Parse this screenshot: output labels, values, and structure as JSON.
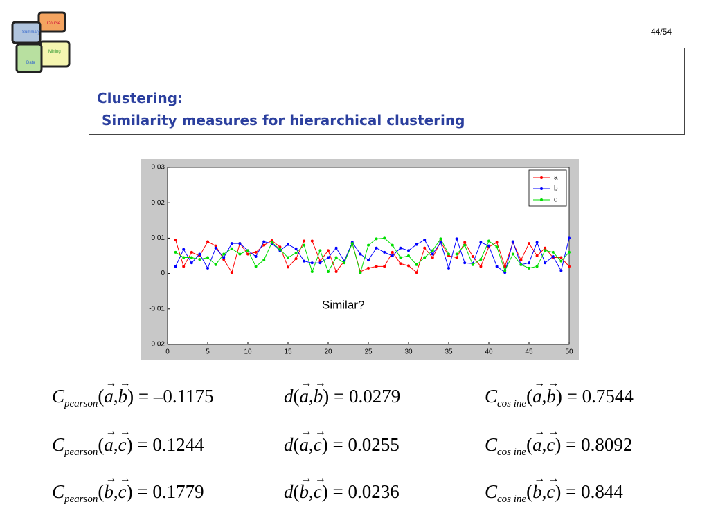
{
  "page_number": "44/54",
  "logo": {
    "pieces": [
      "Course",
      "Summary",
      "Mining",
      "Data"
    ]
  },
  "title": {
    "line1": "Clustering:",
    "line2": "Similarity measures for hierarchical clustering"
  },
  "chart_data": {
    "type": "line",
    "annotation": "Similar?",
    "x": [
      1,
      2,
      3,
      4,
      5,
      6,
      7,
      8,
      9,
      10,
      11,
      12,
      13,
      14,
      15,
      16,
      17,
      18,
      19,
      20,
      21,
      22,
      23,
      24,
      25,
      26,
      27,
      28,
      29,
      30,
      31,
      32,
      33,
      34,
      35,
      36,
      37,
      38,
      39,
      40,
      41,
      42,
      43,
      44,
      45,
      46,
      47,
      48,
      49,
      50
    ],
    "xlim": [
      0,
      50
    ],
    "xticks": [
      0,
      5,
      10,
      15,
      20,
      25,
      30,
      35,
      40,
      45,
      50
    ],
    "ylim": [
      -0.02,
      0.03
    ],
    "yticks": [
      -0.02,
      -0.01,
      0,
      0.01,
      0.02,
      0.03
    ],
    "legend": "upper right",
    "series": [
      {
        "name": "a",
        "color": "#ff0000",
        "values": [
          0.0095,
          0.002,
          0.006,
          0.005,
          0.009,
          0.0078,
          0.004,
          0.0003,
          0.0085,
          0.0055,
          0.006,
          0.008,
          0.0093,
          0.0075,
          0.0018,
          0.0042,
          0.0092,
          0.0092,
          0.0035,
          0.0065,
          0.0005,
          0.0035,
          0.0085,
          0.0005,
          0.0015,
          0.002,
          0.002,
          0.006,
          0.0028,
          0.0022,
          0.0003,
          0.0072,
          0.0045,
          0.009,
          0.005,
          0.0045,
          0.0088,
          0.0048,
          0.002,
          0.0075,
          0.0088,
          0.002,
          0.0088,
          0.0038,
          0.0085,
          0.005,
          0.0072,
          0.0045,
          0.0045,
          0.002
        ]
      },
      {
        "name": "b",
        "color": "#0000ff",
        "values": [
          0.002,
          0.0068,
          0.003,
          0.0055,
          0.0015,
          0.0072,
          0.0045,
          0.0085,
          0.0085,
          0.0065,
          0.0048,
          0.009,
          0.0085,
          0.0065,
          0.0082,
          0.007,
          0.0035,
          0.003,
          0.003,
          0.0045,
          0.0072,
          0.0035,
          0.0088,
          0.0055,
          0.0038,
          0.0072,
          0.006,
          0.005,
          0.0072,
          0.0065,
          0.0082,
          0.0095,
          0.0055,
          0.0088,
          0.0015,
          0.0098,
          0.003,
          0.0028,
          0.0088,
          0.0078,
          0.002,
          0.0003,
          0.009,
          0.0025,
          0.003,
          0.0088,
          0.003,
          0.0048,
          0.0008,
          0.01
        ]
      },
      {
        "name": "c",
        "color": "#00dd00",
        "values": [
          0.006,
          0.0045,
          0.0045,
          0.004,
          0.0045,
          0.0025,
          0.0055,
          0.007,
          0.0055,
          0.0065,
          0.002,
          0.0038,
          0.0088,
          0.0068,
          0.0045,
          0.0058,
          0.008,
          0.0005,
          0.0065,
          0.0005,
          0.0045,
          0.003,
          0.0085,
          0.0002,
          0.008,
          0.0098,
          0.01,
          0.008,
          0.0045,
          0.005,
          0.0025,
          0.0045,
          0.0065,
          0.0098,
          0.0055,
          0.0055,
          0.008,
          0.0025,
          0.004,
          0.0092,
          0.0075,
          0.0008,
          0.0055,
          0.0025,
          0.0015,
          0.002,
          0.0065,
          0.006,
          0.0035,
          0.006
        ]
      }
    ]
  },
  "formulas": [
    {
      "name": "C",
      "sub": "pearson",
      "open": "(",
      "u": "a",
      "comma": ",",
      "v": "b",
      "close": ")",
      "equals": "=",
      "value": "–0.1175"
    },
    {
      "name": "d",
      "sub": "",
      "open": "(",
      "u": "a",
      "comma": ",",
      "v": "b",
      "close": ")",
      "equals": "=",
      "value": "0.0279"
    },
    {
      "name": "C",
      "sub": "cos ine",
      "open": "(",
      "u": "a",
      "comma": ",",
      "v": "b",
      "close": ")",
      "equals": "=",
      "value": "0.7544"
    },
    {
      "name": "C",
      "sub": "pearson",
      "open": "(",
      "u": "a",
      "comma": ",",
      "v": "c",
      "close": ")",
      "equals": "=",
      "value": "0.1244"
    },
    {
      "name": "d",
      "sub": "",
      "open": "(",
      "u": "a",
      "comma": ",",
      "v": "c",
      "close": ")",
      "equals": "=",
      "value": "0.0255"
    },
    {
      "name": "C",
      "sub": "cos ine",
      "open": "(",
      "u": "a",
      "comma": ",",
      "v": "c",
      "close": ")",
      "equals": "=",
      "value": "0.8092"
    },
    {
      "name": "C",
      "sub": "pearson",
      "open": "(",
      "u": "b",
      "comma": ",",
      "v": "c",
      "close": ")",
      "equals": "=",
      "value": "0.1779"
    },
    {
      "name": "d",
      "sub": "",
      "open": "(",
      "u": "b",
      "comma": ",",
      "v": "c",
      "close": ")",
      "equals": "=",
      "value": "0.0236"
    },
    {
      "name": "C",
      "sub": "cos ine",
      "open": "(",
      "u": "b",
      "comma": ",",
      "v": "c",
      "close": ")",
      "equals": "=",
      "value": "0.844"
    }
  ]
}
